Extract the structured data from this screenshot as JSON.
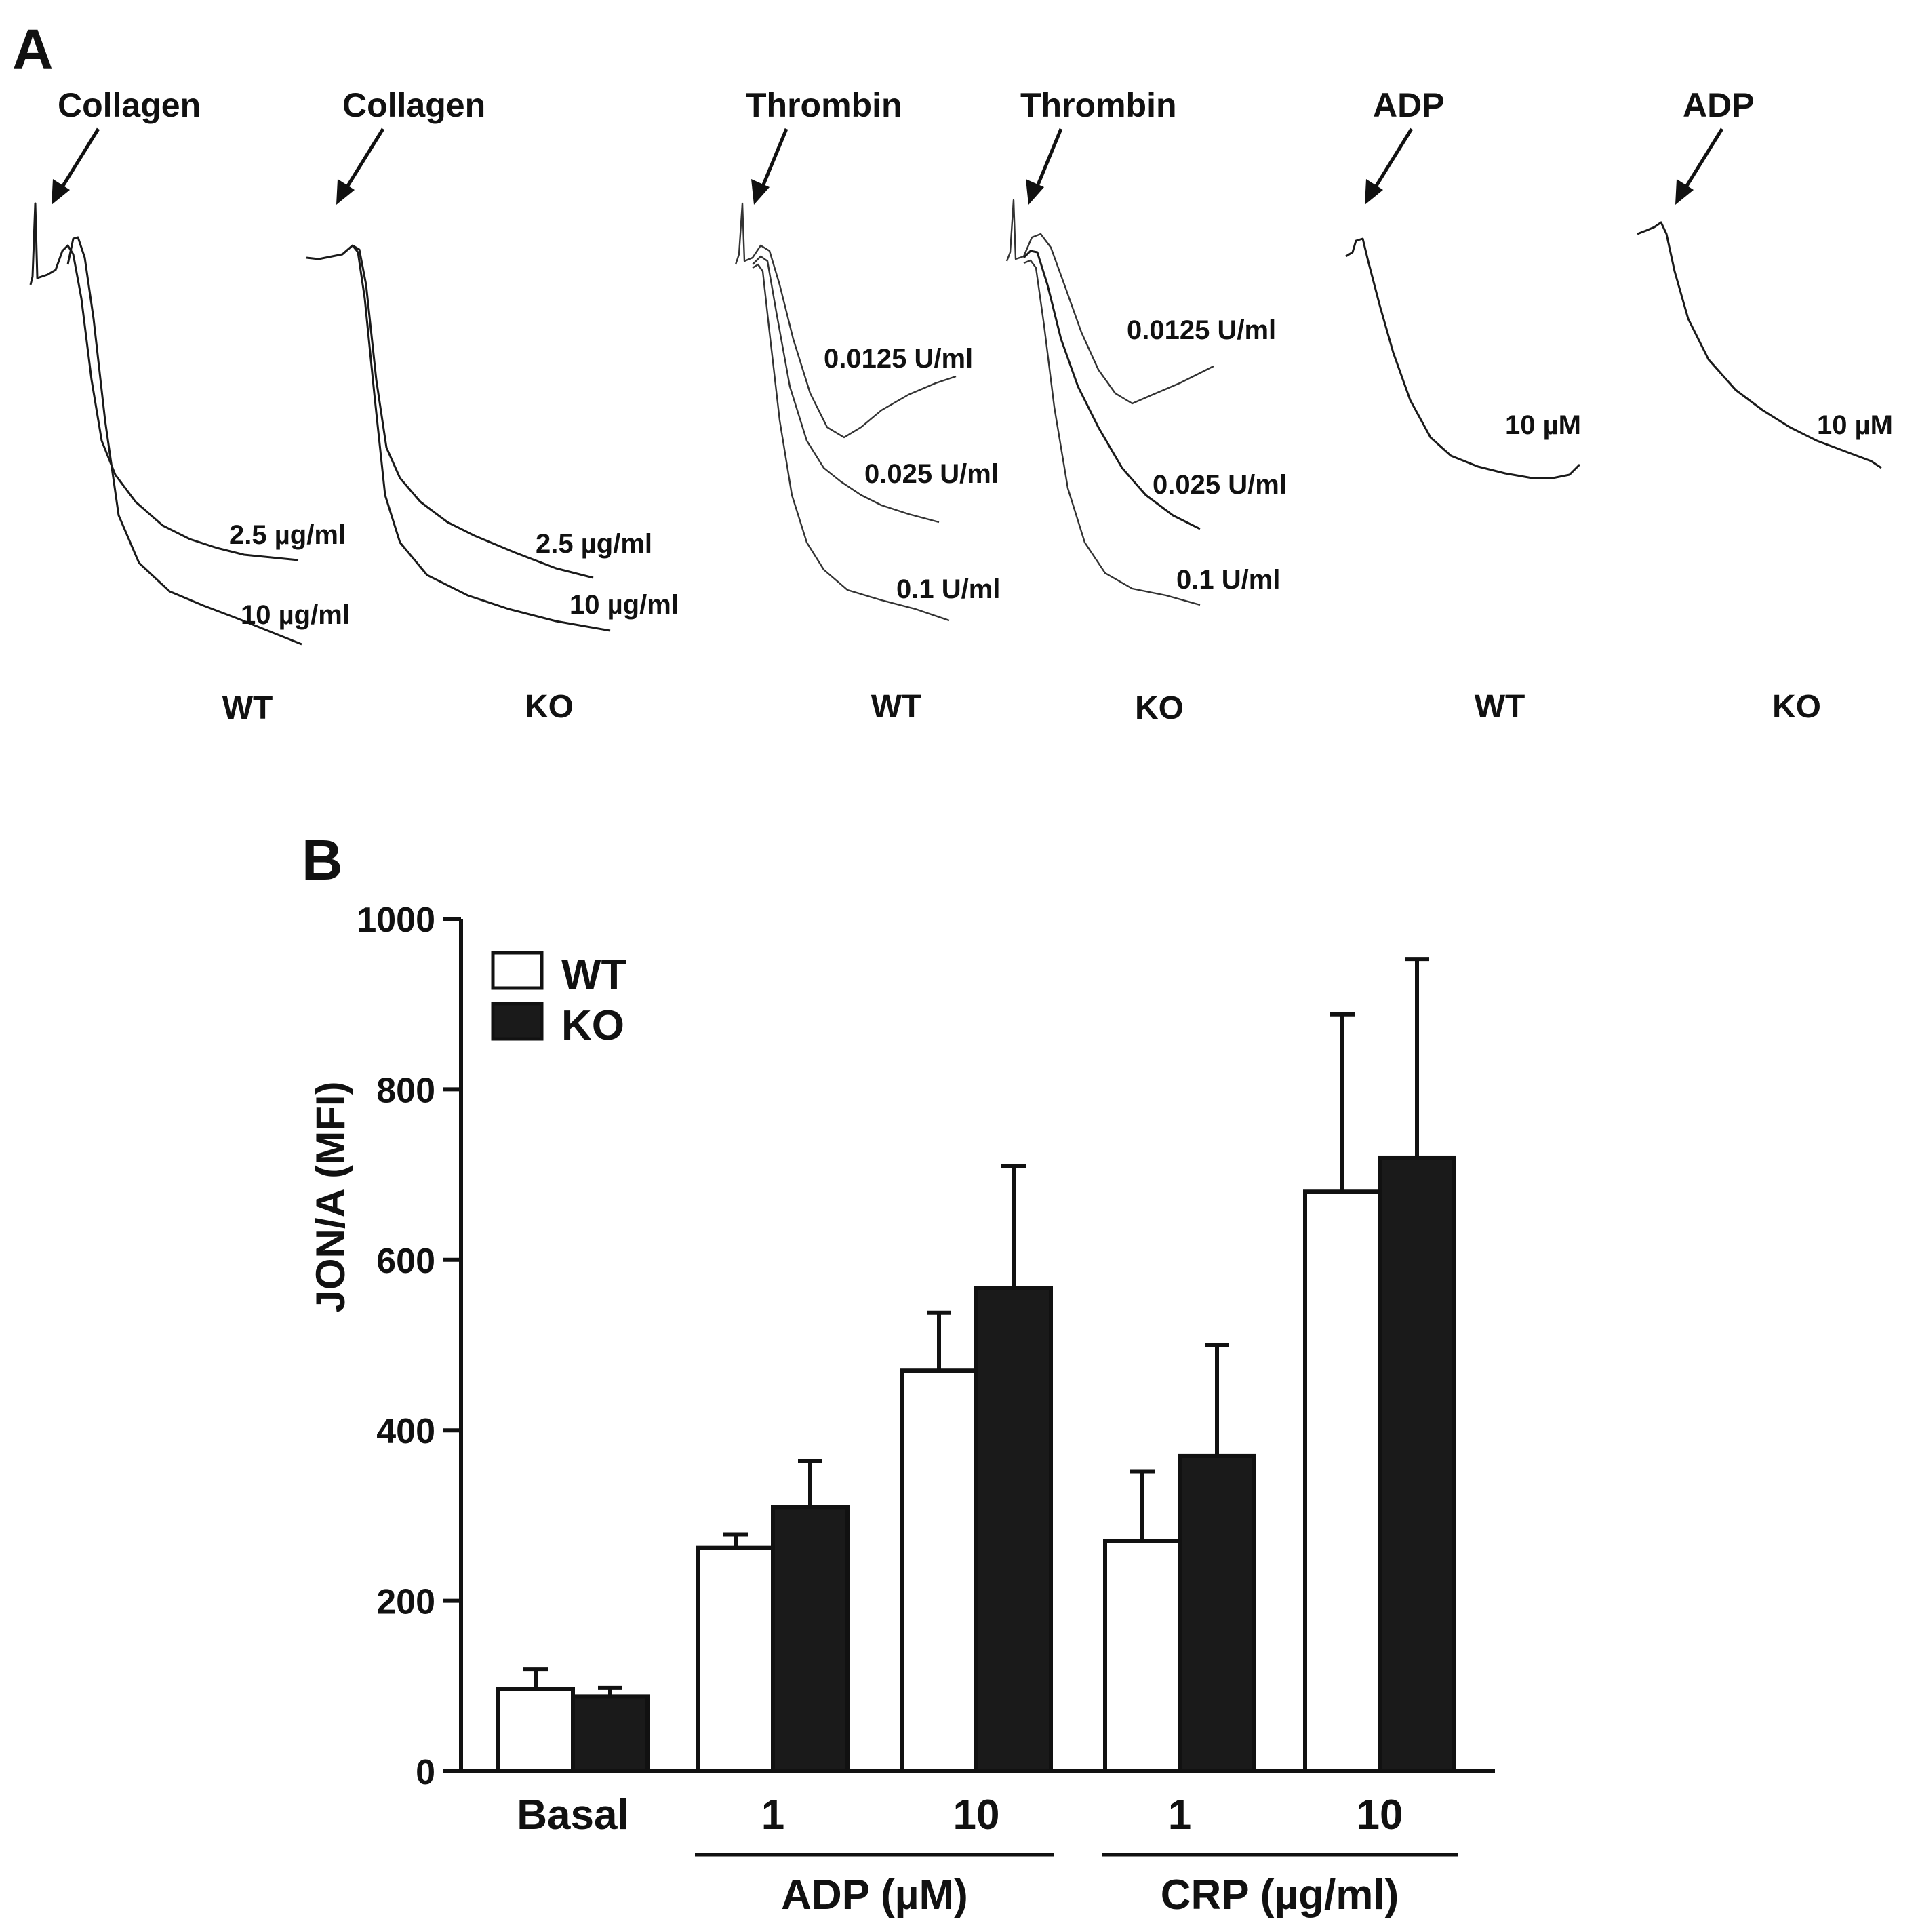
{
  "panel_a": {
    "letter": "A",
    "groups": [
      {
        "agonist": "Collagen",
        "genotype": "WT",
        "concs": [
          "2.5 µg/ml",
          "10 µg/ml"
        ]
      },
      {
        "agonist": "Collagen",
        "genotype": "KO",
        "concs": [
          "2.5 µg/ml",
          "10 µg/ml"
        ]
      },
      {
        "agonist": "Thrombin",
        "genotype": "WT",
        "concs": [
          "0.0125 U/ml",
          "0.025 U/ml",
          "0.1 U/ml"
        ]
      },
      {
        "agonist": "Thrombin",
        "genotype": "KO",
        "concs": [
          "0.0125 U/ml",
          "0.025 U/ml",
          "0.1 U/ml"
        ]
      },
      {
        "agonist": "ADP",
        "genotype": "WT",
        "concs": [
          "10 µM"
        ]
      },
      {
        "agonist": "ADP",
        "genotype": "KO",
        "concs": [
          "10 µM"
        ]
      }
    ]
  },
  "panel_b": {
    "letter": "B"
  },
  "chart_data": {
    "type": "bar",
    "ylabel": "JON/A (MFI)",
    "ylim": [
      0,
      1000
    ],
    "yticks": [
      0,
      200,
      400,
      600,
      800,
      1000
    ],
    "categories": [
      "Basal",
      "1",
      "10",
      "1",
      "10"
    ],
    "group_labels": [
      {
        "label": "ADP (µM)",
        "categories": [
          1,
          2
        ]
      },
      {
        "label": "CRP (µg/ml)",
        "categories": [
          3,
          4
        ]
      }
    ],
    "legend": {
      "position": "top-left",
      "entries": [
        "WT",
        "KO"
      ]
    },
    "series": [
      {
        "name": "WT",
        "color": "#ffffff",
        "values": [
          97,
          262,
          470,
          270,
          680
        ],
        "errors": [
          23,
          16,
          68,
          82,
          208
        ]
      },
      {
        "name": "KO",
        "color": "#1a1a1a",
        "values": [
          88,
          310,
          567,
          370,
          720
        ],
        "errors": [
          10,
          54,
          143,
          130,
          233
        ]
      }
    ]
  }
}
